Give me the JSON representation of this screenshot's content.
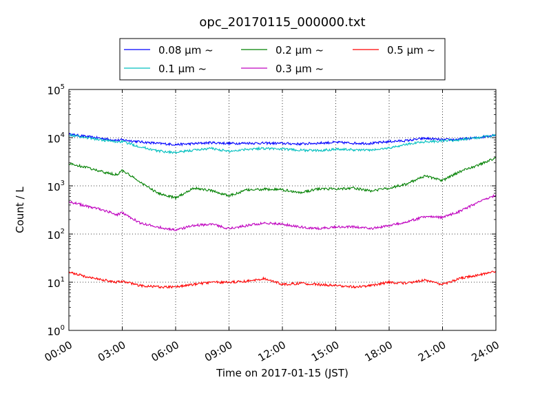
{
  "chart_data": {
    "type": "line",
    "title": "opc_20170115_000000.txt",
    "xlabel": "Time on 2017-01-15 (JST)",
    "ylabel": "Count / L",
    "x_unit": "hours",
    "xlim": [
      0,
      24
    ],
    "ylim": [
      1,
      100000
    ],
    "yscale": "log",
    "grid": true,
    "legend_position": "top",
    "x_tick_labels": [
      "00:00",
      "03:00",
      "06:00",
      "09:00",
      "12:00",
      "15:00",
      "18:00",
      "21:00",
      "24:00"
    ],
    "y_tick_labels": [
      {
        "base": "10",
        "exp": "0"
      },
      {
        "base": "10",
        "exp": "1"
      },
      {
        "base": "10",
        "exp": "2"
      },
      {
        "base": "10",
        "exp": "3"
      },
      {
        "base": "10",
        "exp": "4"
      },
      {
        "base": "10",
        "exp": "5"
      }
    ],
    "x": [
      0,
      1,
      2,
      2.7,
      3,
      4,
      5,
      6,
      7,
      8,
      9,
      10,
      11,
      12,
      13,
      14,
      15,
      16,
      17,
      18,
      19,
      20,
      21,
      22,
      23,
      24
    ],
    "series": [
      {
        "name": "0.08 μm ~",
        "color": "#0000ff",
        "values": [
          11800,
          10500,
          9500,
          8800,
          9000,
          8200,
          7600,
          7200,
          7500,
          7900,
          7600,
          7700,
          7700,
          7600,
          7400,
          7700,
          8000,
          7700,
          7600,
          8300,
          8700,
          9700,
          9000,
          9300,
          10000,
          11500
        ]
      },
      {
        "name": "0.1 μm ~",
        "color": "#00bfbf",
        "values": [
          11500,
          10000,
          8800,
          8200,
          8300,
          6500,
          5300,
          4900,
          5500,
          6000,
          5200,
          5800,
          6000,
          5800,
          5500,
          5400,
          5800,
          5600,
          5500,
          6100,
          7300,
          8300,
          8500,
          9000,
          10000,
          11200
        ]
      },
      {
        "name": "0.2 μm ~",
        "color": "#008000",
        "values": [
          2900,
          2400,
          1900,
          1700,
          2100,
          1200,
          700,
          560,
          900,
          800,
          620,
          820,
          850,
          830,
          720,
          860,
          870,
          900,
          780,
          900,
          1100,
          1600,
          1300,
          2000,
          2700,
          3800
        ]
      },
      {
        "name": "0.3 μm ~",
        "color": "#bf00bf",
        "values": [
          470,
          380,
          310,
          250,
          280,
          170,
          140,
          120,
          150,
          160,
          130,
          150,
          170,
          160,
          140,
          130,
          140,
          140,
          130,
          150,
          180,
          230,
          220,
          300,
          450,
          650
        ]
      },
      {
        "name": "0.5 μm ~",
        "color": "#ff0000",
        "values": [
          16,
          13,
          11,
          10,
          10.5,
          8.5,
          8,
          8,
          9,
          10,
          10,
          10.5,
          12,
          9,
          9.5,
          9,
          8.5,
          8,
          8.5,
          10,
          9.5,
          11,
          9,
          12,
          14,
          17
        ]
      }
    ]
  }
}
